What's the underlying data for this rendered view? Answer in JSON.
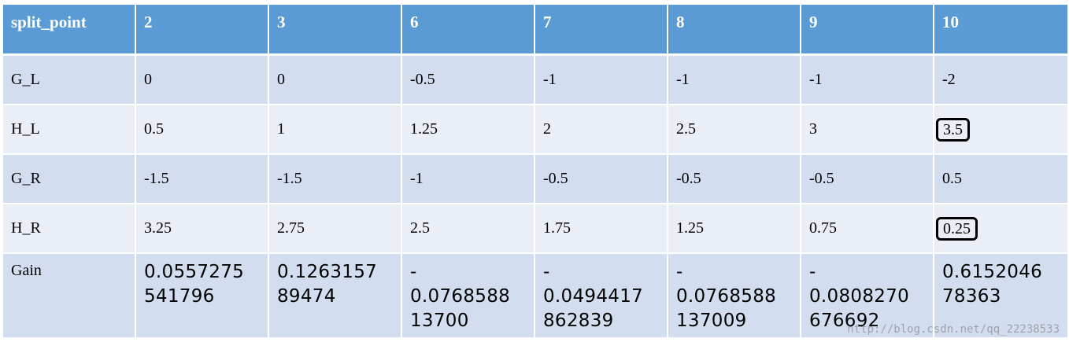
{
  "header": [
    "split_point",
    "2",
    "3",
    "6",
    "7",
    "8",
    "9",
    "10"
  ],
  "rows": [
    {
      "label": "G_L",
      "values": [
        "0",
        "0",
        "-0.5",
        "-1",
        "-1",
        "-1",
        "-2"
      ]
    },
    {
      "label": "H_L",
      "values": [
        "0.5",
        "1",
        "1.25",
        "2",
        "2.5",
        "3",
        "3.5"
      ]
    },
    {
      "label": "G_R",
      "values": [
        "-1.5",
        "-1.5",
        "-1",
        "-0.5",
        "-0.5",
        "-0.5",
        "0.5"
      ]
    },
    {
      "label": "H_R",
      "values": [
        "3.25",
        "2.75",
        "2.5",
        "1.75",
        "1.25",
        "0.75",
        "0.25"
      ]
    }
  ],
  "gain": {
    "label": "Gain",
    "values": [
      [
        "0.0557275",
        "541796"
      ],
      [
        "0.1263157",
        "89474"
      ],
      [
        "-",
        "0.0768588",
        "13700"
      ],
      [
        "-",
        "0.0494417",
        "862839"
      ],
      [
        "-",
        "0.0768588",
        "137009"
      ],
      [
        "-",
        "0.0808270",
        "676692"
      ],
      [
        "0.6152046",
        "78363"
      ]
    ]
  },
  "watermark": "http://blog.csdn.net/qq_22238533",
  "colors": {
    "header": "#5b9bd5",
    "row_dark": "#d2deef",
    "row_light": "#eaeff7"
  }
}
